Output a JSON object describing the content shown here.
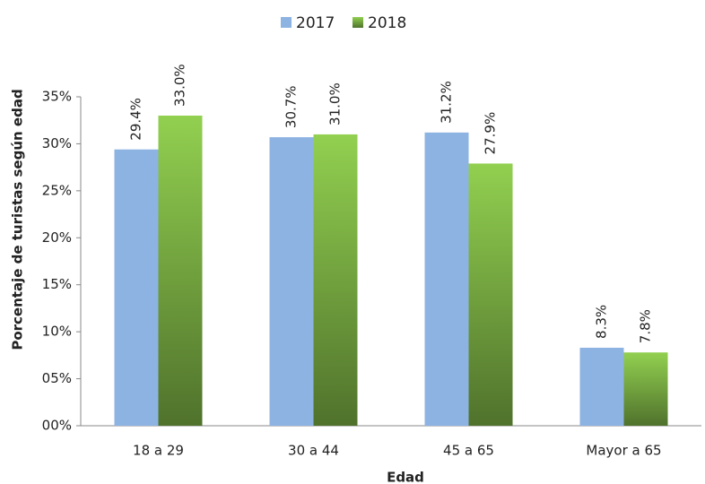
{
  "chart_data": {
    "type": "bar",
    "x_label": "Edad",
    "y_label": "Porcentaje de turistas según edad",
    "categories": [
      "18 a 29",
      "30 a 44",
      "45 a 65",
      "Mayor a 65"
    ],
    "series": [
      {
        "name": "2017",
        "color": "#8db3e2",
        "values": [
          29.4,
          30.7,
          31.2,
          8.3
        ],
        "value_labels": [
          "29.4%",
          "30.7%",
          "31.2%",
          "8.3%"
        ]
      },
      {
        "name": "2018",
        "color": "#92d050",
        "gradient": true,
        "values": [
          33.0,
          31.0,
          27.9,
          7.8
        ],
        "value_labels": [
          "33.0%",
          "31.0%",
          "27.9%",
          "7.8%"
        ]
      }
    ],
    "ylim": [
      0,
      35
    ],
    "yticks": [
      {
        "value": 0,
        "label": "00%"
      },
      {
        "value": 5,
        "label": "05%"
      },
      {
        "value": 10,
        "label": "10%"
      },
      {
        "value": 15,
        "label": "15%"
      },
      {
        "value": 20,
        "label": "20%"
      },
      {
        "value": 25,
        "label": "25%"
      },
      {
        "value": 30,
        "label": "30%"
      },
      {
        "value": 35,
        "label": "35%"
      }
    ],
    "legend": "top",
    "grid": false
  }
}
